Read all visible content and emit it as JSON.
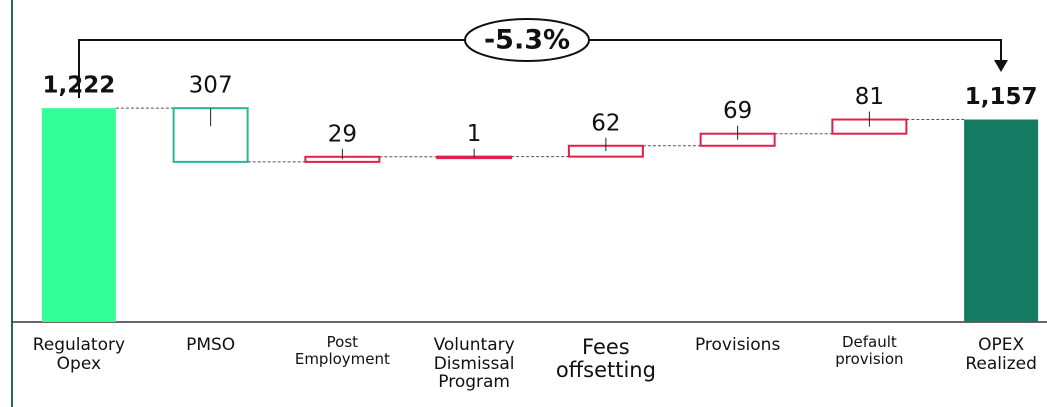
{
  "chart_data": {
    "type": "waterfall",
    "annotation": "-5.3%",
    "categories": [
      "Regulatory Opex",
      "PMSO",
      "Post Employment",
      "Voluntary Dismissal Program",
      "Fees offsetting",
      "Provisions",
      "Default provision",
      "OPEX Realized"
    ],
    "values": [
      1222,
      307,
      29,
      1,
      62,
      69,
      81,
      1157
    ],
    "value_labels": [
      "1,222",
      "307",
      "29",
      "1",
      "62",
      "69",
      "81",
      "1,157"
    ],
    "measures": [
      "total",
      "decrease",
      "increase",
      "increase",
      "increase",
      "increase",
      "increase",
      "total"
    ],
    "colors": {
      "start": "#33ff99",
      "end": "#147a62",
      "decrease": "#2bb596",
      "increase": "#e0204a"
    },
    "ylim": [
      0,
      1400
    ]
  }
}
